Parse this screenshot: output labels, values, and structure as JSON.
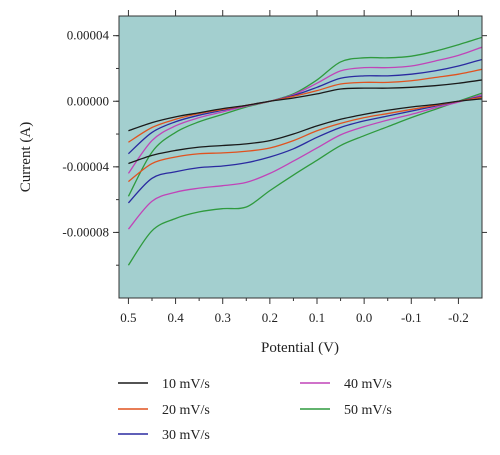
{
  "chart_data": {
    "type": "line",
    "title": "",
    "xlabel": "Potential (V)",
    "ylabel": "Current (A)",
    "x_reversed": true,
    "xlim": [
      0.52,
      -0.25
    ],
    "ylim": [
      -0.00012,
      5.2e-05
    ],
    "background": "#a3cfcf",
    "x_ticks": [
      0.5,
      0.4,
      0.3,
      0.2,
      0.1,
      0.0,
      -0.1,
      -0.2
    ],
    "x_tick_labels": [
      "0.5",
      "0.4",
      "0.3",
      "0.2",
      "0.1",
      "0.0",
      "-0.1",
      "-0.2"
    ],
    "y_ticks": [
      4e-05,
      0.0,
      -4e-05,
      -8e-05
    ],
    "y_tick_labels": [
      "0.00004",
      "0.00000",
      "-0.00004",
      "-0.00008"
    ],
    "legend_position": "bottom",
    "series": [
      {
        "name": "10 mV/s",
        "color": "#1a1a1a",
        "upper": {
          "x": [
            0.5,
            0.45,
            0.4,
            0.35,
            0.3,
            0.25,
            0.2,
            0.15,
            0.1,
            0.05,
            0.0,
            -0.05,
            -0.1,
            -0.15,
            -0.2,
            -0.25
          ],
          "y": [
            -1.8e-05,
            -1.3e-05,
            -9.5e-06,
            -7e-06,
            -4.5e-06,
            -2.5e-06,
            0.0,
            2e-06,
            4.5e-06,
            7.5e-06,
            8e-06,
            8e-06,
            8.5e-06,
            9.5e-06,
            1.1e-05,
            1.3e-05
          ]
        },
        "lower": {
          "x": [
            0.5,
            0.45,
            0.4,
            0.35,
            0.3,
            0.25,
            0.2,
            0.15,
            0.1,
            0.05,
            0.0,
            -0.05,
            -0.1,
            -0.15,
            -0.2,
            -0.25
          ],
          "y": [
            -3.8e-05,
            -3.3e-05,
            -3e-05,
            -2.8e-05,
            -2.7e-05,
            -2.6e-05,
            -2.4e-05,
            -2e-05,
            -1.5e-05,
            -1.1e-05,
            -8e-06,
            -5.5e-06,
            -3.5e-06,
            -2e-06,
            0.0,
            1.5e-06
          ]
        }
      },
      {
        "name": "20 mV/s",
        "color": "#e0521f",
        "upper": {
          "x": [
            0.5,
            0.45,
            0.4,
            0.35,
            0.3,
            0.25,
            0.2,
            0.15,
            0.1,
            0.05,
            0.0,
            -0.05,
            -0.1,
            -0.15,
            -0.2,
            -0.25
          ],
          "y": [
            -2.5e-05,
            -1.6e-05,
            -1.1e-05,
            -7.5e-06,
            -5e-06,
            -2.5e-06,
            0.0,
            3e-06,
            6.5e-06,
            1.05e-05,
            1.15e-05,
            1.15e-05,
            1.25e-05,
            1.45e-05,
            1.65e-05,
            1.95e-05
          ]
        },
        "lower": {
          "x": [
            0.5,
            0.45,
            0.4,
            0.35,
            0.3,
            0.25,
            0.2,
            0.15,
            0.1,
            0.05,
            0.0,
            -0.05,
            -0.1,
            -0.15,
            -0.2,
            -0.25
          ],
          "y": [
            -4.9e-05,
            -3.8e-05,
            -3.4e-05,
            -3.2e-05,
            -3.15e-05,
            -3.05e-05,
            -2.85e-05,
            -2.4e-05,
            -1.8e-05,
            -1.35e-05,
            -1e-05,
            -7.5e-06,
            -5e-06,
            -2.5e-06,
            0.0,
            2.5e-06
          ]
        }
      },
      {
        "name": "30 mV/s",
        "color": "#2a2aa0",
        "upper": {
          "x": [
            0.5,
            0.45,
            0.4,
            0.35,
            0.3,
            0.25,
            0.2,
            0.15,
            0.1,
            0.05,
            0.0,
            -0.05,
            -0.1,
            -0.15,
            -0.2,
            -0.25
          ],
          "y": [
            -3.2e-05,
            -1.9e-05,
            -1.25e-05,
            -8.5e-06,
            -5.5e-06,
            -2.5e-06,
            0.0,
            3.5e-06,
            8.5e-06,
            1.4e-05,
            1.55e-05,
            1.55e-05,
            1.65e-05,
            1.85e-05,
            2.15e-05,
            2.55e-05
          ]
        },
        "lower": {
          "x": [
            0.5,
            0.45,
            0.4,
            0.35,
            0.3,
            0.25,
            0.2,
            0.15,
            0.1,
            0.05,
            0.0,
            -0.05,
            -0.1,
            -0.15,
            -0.2,
            -0.25
          ],
          "y": [
            -6.2e-05,
            -4.7e-05,
            -4.3e-05,
            -4.05e-05,
            -3.95e-05,
            -3.75e-05,
            -3.4e-05,
            -2.9e-05,
            -2.2e-05,
            -1.6e-05,
            -1.2e-05,
            -9e-06,
            -6e-06,
            -3e-06,
            0.0,
            3e-06
          ]
        }
      },
      {
        "name": "40 mV/s",
        "color": "#c044b8",
        "upper": {
          "x": [
            0.5,
            0.45,
            0.4,
            0.35,
            0.3,
            0.25,
            0.2,
            0.15,
            0.1,
            0.05,
            0.0,
            -0.05,
            -0.1,
            -0.15,
            -0.2,
            -0.25
          ],
          "y": [
            -4.4e-05,
            -2.4e-05,
            -1.5e-05,
            -1e-05,
            -6.5e-06,
            -3e-06,
            0.0,
            4e-06,
            1.1e-05,
            1.85e-05,
            2.05e-05,
            2.05e-05,
            2.15e-05,
            2.45e-05,
            2.8e-05,
            3.3e-05
          ]
        },
        "lower": {
          "x": [
            0.5,
            0.45,
            0.4,
            0.35,
            0.3,
            0.25,
            0.2,
            0.15,
            0.1,
            0.05,
            0.0,
            -0.05,
            -0.1,
            -0.15,
            -0.2,
            -0.25
          ],
          "y": [
            -7.8e-05,
            -6.1e-05,
            -5.55e-05,
            -5.3e-05,
            -5.15e-05,
            -4.95e-05,
            -4.4e-05,
            -3.65e-05,
            -2.85e-05,
            -2.05e-05,
            -1.55e-05,
            -1.15e-05,
            -8e-06,
            -4e-06,
            -5e-07,
            4e-06
          ]
        }
      },
      {
        "name": "50 mV/s",
        "color": "#2f9a3e",
        "upper": {
          "x": [
            0.5,
            0.45,
            0.4,
            0.35,
            0.3,
            0.25,
            0.2,
            0.15,
            0.1,
            0.05,
            0.0,
            -0.05,
            -0.1,
            -0.15,
            -0.2,
            -0.25
          ],
          "y": [
            -5.8e-05,
            -3.1e-05,
            -1.9e-05,
            -1.25e-05,
            -8e-06,
            -3.5e-06,
            0.0,
            4.5e-06,
            1.3e-05,
            2.4e-05,
            2.65e-05,
            2.65e-05,
            2.75e-05,
            3.05e-05,
            3.45e-05,
            3.9e-05
          ]
        },
        "lower": {
          "x": [
            0.5,
            0.45,
            0.4,
            0.35,
            0.3,
            0.25,
            0.2,
            0.15,
            0.1,
            0.05,
            0.0,
            -0.05,
            -0.1,
            -0.15,
            -0.2,
            -0.25
          ],
          "y": [
            -0.0001,
            -7.9e-05,
            -7.15e-05,
            -6.75e-05,
            -6.55e-05,
            -6.45e-05,
            -5.45e-05,
            -4.5e-05,
            -3.6e-05,
            -2.7e-05,
            -2.1e-05,
            -1.55e-05,
            -1e-05,
            -5e-06,
            0.0,
            5e-06
          ]
        }
      }
    ]
  }
}
